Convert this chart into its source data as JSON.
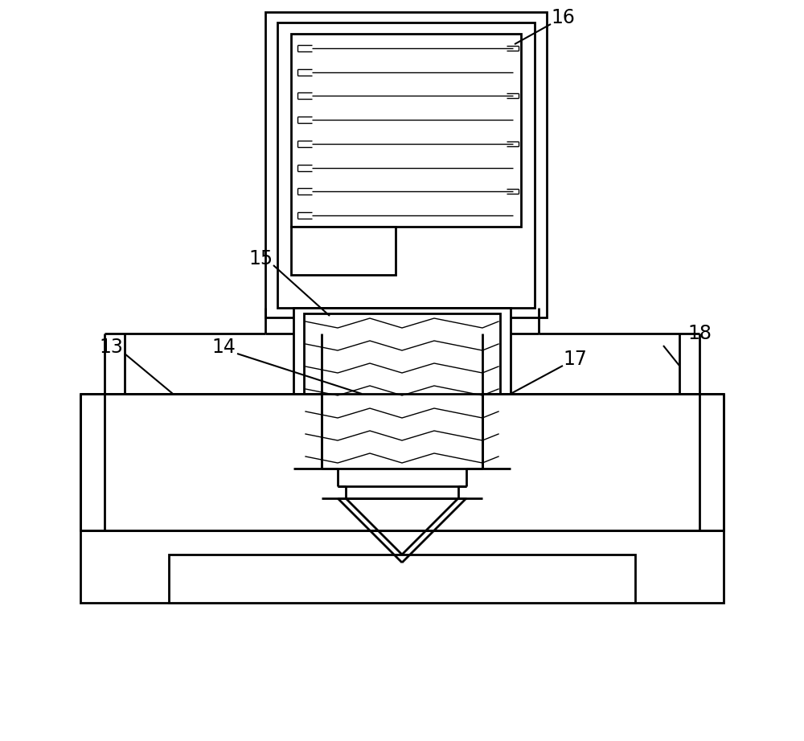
{
  "bg_color": "#ffffff",
  "line_color": "#000000",
  "lw_main": 2.0,
  "lw_thin": 1.0,
  "fig_width": 10.0,
  "fig_height": 9.22
}
